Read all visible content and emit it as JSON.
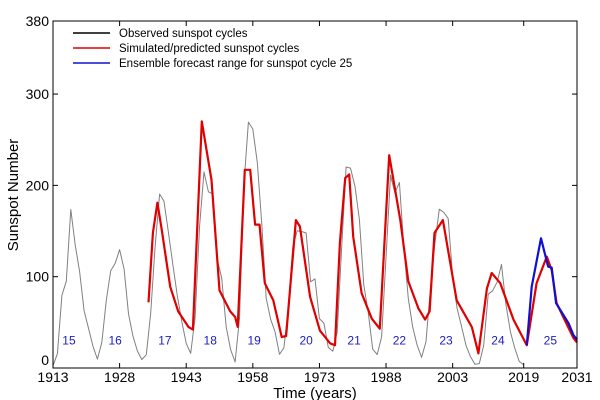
{
  "chart_data": {
    "type": "line",
    "xlabel": "Time (years)",
    "ylabel": "Sunspot Number",
    "xlim": [
      1913,
      2031
    ],
    "ylim": [
      0,
      380
    ],
    "xticks": [
      1913,
      1928,
      1943,
      1958,
      1973,
      1988,
      2003,
      2019,
      2031
    ],
    "yticks": [
      0,
      100,
      200,
      300,
      380
    ],
    "grid": false,
    "legend_position": "top-left",
    "series": [
      {
        "name": "Observed sunspot cycles",
        "color": "#808080",
        "legend_color": "#000000",
        "x": [
          1913,
          1914,
          1915,
          1916,
          1917,
          1918,
          1919,
          1920,
          1921,
          1922,
          1923,
          1924,
          1925,
          1926,
          1927,
          1928,
          1929,
          1930,
          1931,
          1932,
          1933,
          1934,
          1935,
          1936,
          1937,
          1938,
          1939,
          1940,
          1941,
          1942,
          1943,
          1944,
          1945,
          1946,
          1947,
          1948,
          1949,
          1950,
          1951,
          1952,
          1953,
          1954,
          1955,
          1956,
          1957,
          1958,
          1959,
          1960,
          1961,
          1962,
          1963,
          1964,
          1965,
          1966,
          1967,
          1968,
          1969,
          1970,
          1971,
          1972,
          1973,
          1974,
          1975,
          1976,
          1977,
          1978,
          1979,
          1980,
          1981,
          1982,
          1983,
          1984,
          1985,
          1986,
          1987,
          1988,
          1989,
          1990,
          1991,
          1992,
          1993,
          1994,
          1995,
          1996,
          1997,
          1998,
          1999,
          2000,
          2001,
          2002,
          2003,
          2004,
          2005,
          2006,
          2007,
          2008,
          2009,
          2010,
          2011,
          2012,
          2013,
          2014,
          2015,
          2016,
          2017,
          2018,
          2019
        ],
        "y": [
          2.4,
          15.7,
          79.5,
          95.1,
          173.6,
          134.8,
          105.7,
          62.7,
          43.5,
          23.7,
          9.7,
          27.9,
          74,
          106.5,
          114.7,
          129.7,
          108.2,
          59.4,
          35.1,
          18.6,
          9.2,
          14.6,
          60.2,
          132.8,
          190.6,
          182.6,
          148,
          113,
          79.2,
          50.8,
          27.1,
          16.1,
          55.3,
          154.3,
          214.7,
          193,
          190.7,
          118.9,
          98.3,
          45,
          20.1,
          6.6,
          54.2,
          200.7,
          269.3,
          261.7,
          225.1,
          159,
          76.4,
          53.4,
          39.9,
          15,
          22,
          66.8,
          132.9,
          150.2,
          149.4,
          148,
          94.4,
          97.6,
          54.1,
          49.2,
          22.5,
          18.4,
          39.3,
          131,
          220.1,
          218.9,
          198.9,
          162.4,
          91,
          60.5,
          20.6,
          14.8,
          33.9,
          123,
          211.1,
          191.8,
          203.3,
          133,
          76.1,
          44.9,
          25.1,
          11.6,
          28.9,
          88.3,
          136.3,
          173.9,
          170.4,
          163.6,
          99.3,
          65.3,
          45.8,
          24.7,
          12.6,
          4.2,
          4.8,
          24.9,
          80.8,
          84.5,
          94,
          113.3,
          69.8,
          39.8,
          21.7,
          7,
          3.6
        ]
      },
      {
        "name": "Simulated/predicted sunspot cycles",
        "color": "#e00000",
        "x": [
          1934.5,
          1935.5,
          1936.5,
          1937.5,
          1939.4,
          1941.2,
          1943.5,
          1944.5,
          1946.5,
          1948.7,
          1950.5,
          1952.9,
          1954.0,
          1954.6,
          1956.2,
          1957.4,
          1958.5,
          1959.5,
          1960.7,
          1962.6,
          1964.5,
          1965.5,
          1967.7,
          1968.6,
          1970.9,
          1973.1,
          1975.4,
          1976.5,
          1977.6,
          1978.8,
          1979.7,
          1980.6,
          1982.5,
          1984.8,
          1986.6,
          1988.7,
          1991.2,
          1993.0,
          1995.3,
          1996.8,
          1997.8,
          1998.9,
          2000.8,
          2003.9,
          2007.3,
          2008.8,
          2010.7,
          2011.8,
          2013.7,
          2016.7,
          2019.7,
          2021.9,
          2024.2,
          2025.3,
          2026.4,
          2027.9,
          2030.2,
          2031
        ],
        "y": [
          72,
          148,
          181,
          151,
          89,
          62,
          45,
          42,
          270,
          206,
          85,
          62,
          56,
          45,
          217,
          217,
          157,
          157,
          93,
          74,
          34,
          35,
          162,
          155,
          78,
          41,
          27,
          25,
          137,
          208,
          212,
          144,
          82,
          54,
          43,
          233,
          162,
          95,
          65,
          53,
          62,
          148,
          162,
          74,
          45,
          16,
          87,
          104,
          93,
          53,
          25,
          93,
          122,
          107,
          71,
          56,
          33,
          28
        ]
      },
      {
        "name": "Ensemble forecast range for sunspot cycle 25",
        "color": "#1010d0",
        "x": [
          2019.7,
          2020.8,
          2022.9,
          2024.5,
          2025.3,
          2026.3,
          2029.1,
          2030.2,
          2031
        ],
        "y": [
          25,
          89,
          142,
          111,
          110,
          71,
          49,
          36,
          31
        ]
      }
    ],
    "annotations": [
      {
        "text": "15",
        "x": 1916.6,
        "y": 30
      },
      {
        "text": "16",
        "x": 1927.0,
        "y": 30
      },
      {
        "text": "17",
        "x": 1938.2,
        "y": 30
      },
      {
        "text": "18",
        "x": 1948.4,
        "y": 30
      },
      {
        "text": "19",
        "x": 1958.3,
        "y": 30
      },
      {
        "text": "20",
        "x": 1970.0,
        "y": 30
      },
      {
        "text": "21",
        "x": 1980.8,
        "y": 30
      },
      {
        "text": "22",
        "x": 1991.0,
        "y": 30
      },
      {
        "text": "23",
        "x": 2001.5,
        "y": 30
      },
      {
        "text": "24",
        "x": 2013.2,
        "y": 30
      },
      {
        "text": "25",
        "x": 2025.0,
        "y": 30
      }
    ]
  }
}
